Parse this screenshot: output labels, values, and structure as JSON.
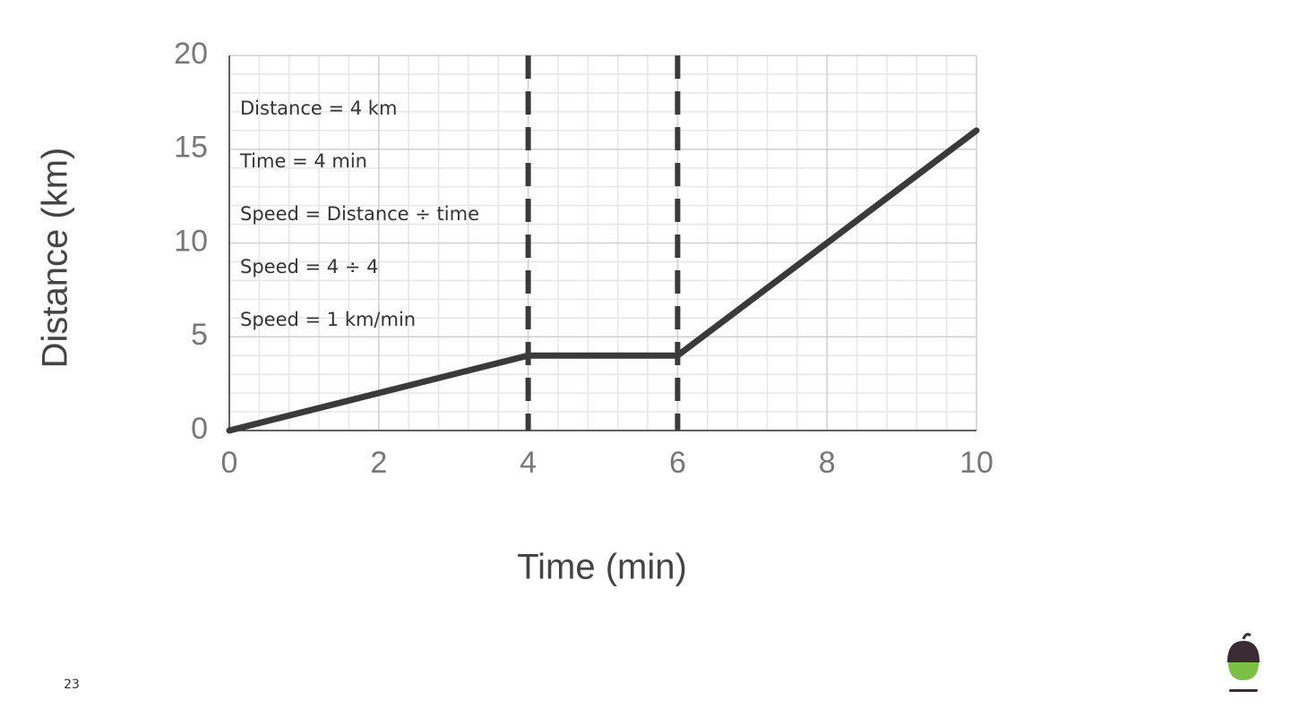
{
  "chart_data": {
    "type": "line",
    "x": [
      0,
      4,
      6,
      10
    ],
    "series": [
      {
        "color": "#3a3a3a",
        "values": [
          0,
          4,
          4,
          16
        ]
      }
    ],
    "xlabel": "Time (min)",
    "ylabel": "Distance (km)",
    "xlim": [
      0,
      10
    ],
    "ylim": [
      0,
      20
    ],
    "xticks": [
      0,
      2,
      4,
      6,
      8,
      10
    ],
    "yticks": [
      0,
      5,
      10,
      15,
      20
    ],
    "grid": true,
    "vlines": [
      4,
      6
    ],
    "annotations": [
      "Distance = 4 km",
      "Time = 4 min",
      "Speed = Distance ÷ time",
      "Speed = 4 ÷ 4",
      "Speed = 1 km/min"
    ]
  },
  "slide": {
    "page_number": "23"
  }
}
